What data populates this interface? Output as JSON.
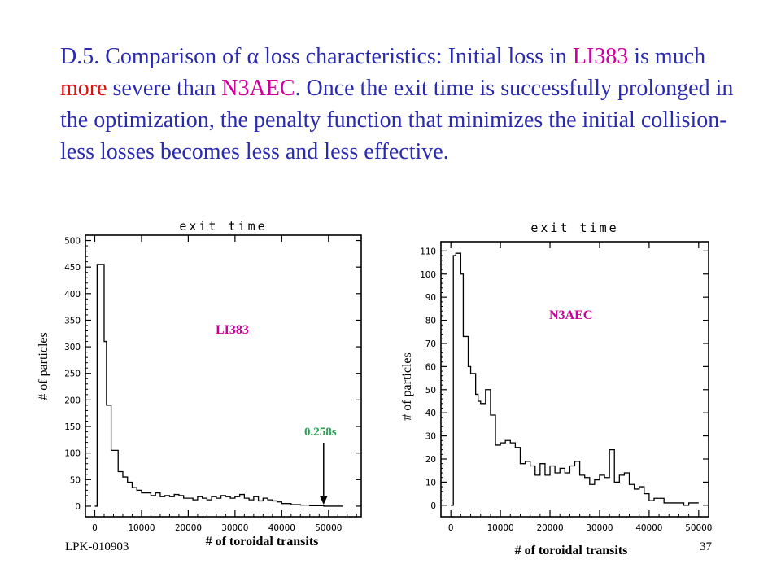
{
  "slide": {
    "title_parts": {
      "p1": "D.5. Comparison of ",
      "alpha": "α",
      "p2": " loss characteristics: Initial loss in ",
      "li383": "LI383",
      "p3": " is much ",
      "more": "more",
      "p4": " severe than ",
      "n3aec": "N3AEC",
      "p5": ". Once the exit time is successfully prolonged in the optimization, the penalty function that minimizes the initial collision-less losses becomes less and less effective."
    },
    "footer_left": "LPK-010903",
    "page_number": "37",
    "colors": {
      "title": "#2b2bb0",
      "magenta": "#cc0099",
      "red": "#e01010",
      "annotation": "#2e9e57"
    }
  },
  "chart_data": [
    {
      "type": "line",
      "title": "exit time",
      "xlabel": "# of toroidal transits",
      "ylabel": "# of particles",
      "label": "LI383",
      "xlim": [
        -2000,
        57000
      ],
      "ylim": [
        -20,
        510
      ],
      "xticks": [
        0,
        10000,
        20000,
        30000,
        40000,
        50000
      ],
      "yticks": [
        0,
        50,
        100,
        150,
        200,
        250,
        300,
        350,
        400,
        450,
        500
      ],
      "annotation": {
        "text": "0.258s",
        "x": 50000,
        "y": 0
      },
      "series": [
        {
          "x": [
            0,
            500,
            1000,
            2000,
            2500,
            3000,
            3500,
            4000,
            5000,
            6000,
            7000,
            8000,
            9000,
            10000,
            11000,
            12000,
            13000,
            14000,
            15000,
            16000,
            17000,
            18000,
            19000,
            20000,
            21000,
            22000,
            23000,
            24000,
            25000,
            26000,
            27000,
            28000,
            29000,
            30000,
            31000,
            32000,
            33000,
            34000,
            35000,
            36000,
            37000,
            38000,
            39000,
            40000,
            41000,
            42000,
            43000,
            44000,
            45000,
            46000,
            47000,
            48000,
            49000,
            50000,
            52000
          ],
          "y": [
            0,
            455,
            455,
            310,
            190,
            190,
            105,
            105,
            65,
            55,
            45,
            35,
            30,
            25,
            25,
            20,
            25,
            18,
            20,
            18,
            22,
            20,
            15,
            15,
            12,
            18,
            15,
            12,
            18,
            15,
            20,
            18,
            15,
            18,
            22,
            15,
            12,
            18,
            10,
            15,
            12,
            10,
            8,
            5,
            5,
            3,
            3,
            2,
            2,
            1,
            1,
            1,
            0,
            0,
            0
          ]
        }
      ]
    },
    {
      "type": "line",
      "title": "exit time",
      "xlabel": "# of toroidal transits",
      "ylabel": "# of particles",
      "label": "N3AEC",
      "xlim": [
        -2000,
        52000
      ],
      "ylim": [
        -5,
        114
      ],
      "xticks": [
        0,
        10000,
        20000,
        30000,
        40000,
        50000
      ],
      "yticks": [
        0,
        10,
        20,
        30,
        40,
        50,
        60,
        70,
        80,
        90,
        100,
        110
      ],
      "series": [
        {
          "x": [
            0,
            500,
            1000,
            2000,
            2500,
            3500,
            4000,
            5000,
            5500,
            6000,
            7000,
            8000,
            9000,
            10000,
            11000,
            12000,
            13000,
            14000,
            15000,
            16000,
            17000,
            18000,
            19000,
            20000,
            21000,
            22000,
            23000,
            24000,
            25000,
            26000,
            27000,
            28000,
            29000,
            30000,
            31000,
            32000,
            33000,
            34000,
            35000,
            36000,
            37000,
            38000,
            39000,
            40000,
            41000,
            42000,
            43000,
            44000,
            45000,
            46000,
            47000,
            48000,
            49000
          ],
          "y": [
            0,
            108,
            109,
            100,
            73,
            60,
            57,
            48,
            45,
            44,
            50,
            39,
            26,
            27,
            28,
            27,
            25,
            18,
            19,
            17,
            13,
            18,
            13,
            17,
            14,
            16,
            14,
            17,
            19,
            13,
            12,
            9,
            11,
            13,
            12,
            24,
            10,
            13,
            14,
            9,
            7,
            8,
            5,
            2,
            3,
            3,
            1,
            1,
            1,
            1,
            0,
            1,
            1
          ]
        }
      ]
    }
  ]
}
